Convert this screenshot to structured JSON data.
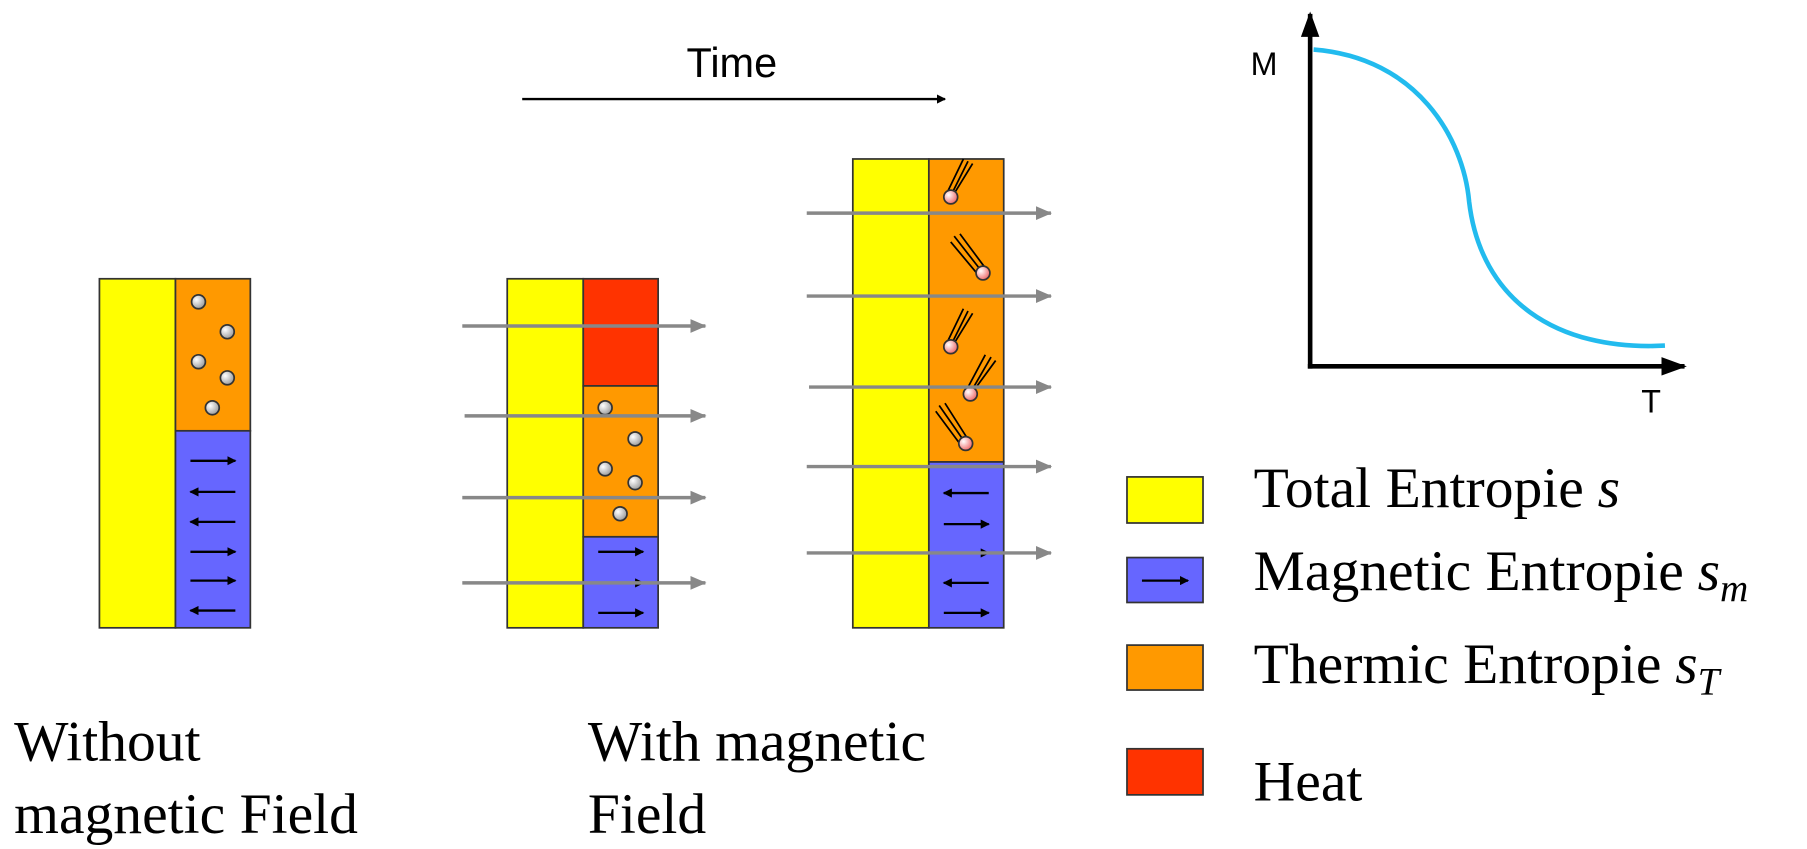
{
  "time_label": "Time",
  "graph": {
    "y_label": "M",
    "x_label": "T"
  },
  "legend": [
    {
      "label": "Total Entropie",
      "symbol": "s"
    },
    {
      "label": "Magnetic Entropie",
      "symbol": "s",
      "subscript": "m"
    },
    {
      "label": "Thermic Entropie",
      "symbol": "s",
      "subscript": "T"
    },
    {
      "label": "Heat"
    }
  ],
  "captions": [
    {
      "lines": [
        "Without",
        "magnetic Field"
      ]
    },
    {
      "lines": [
        "With magnetic",
        "Field"
      ]
    }
  ]
}
